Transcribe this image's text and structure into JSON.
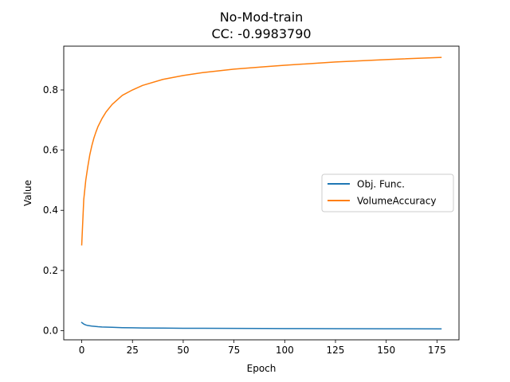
{
  "chart_data": {
    "type": "line",
    "title": "No-Mod-train",
    "subtitle": "CC: -0.9983790",
    "xlabel": "Epoch",
    "ylabel": "Value",
    "xlim": [
      -8.85,
      185.85
    ],
    "ylim": [
      -0.0305,
      0.9455
    ],
    "xticks": [
      0,
      25,
      50,
      75,
      100,
      125,
      150,
      175
    ],
    "yticks": [
      0.0,
      0.2,
      0.4,
      0.6,
      0.8
    ],
    "ytick_labels": [
      "0.0",
      "0.2",
      "0.4",
      "0.6",
      "0.8"
    ],
    "grid": false,
    "legend_placement": "center-right",
    "series": [
      {
        "name": "Obj. Func.",
        "color": "#1f77b4",
        "x": [
          0,
          1,
          2,
          3,
          5,
          8,
          10,
          15,
          20,
          25,
          30,
          40,
          50,
          60,
          75,
          90,
          100,
          125,
          150,
          177
        ],
        "y": [
          0.027,
          0.022,
          0.019,
          0.017,
          0.015,
          0.013,
          0.012,
          0.011,
          0.01,
          0.0095,
          0.009,
          0.0085,
          0.008,
          0.0078,
          0.0075,
          0.0072,
          0.007,
          0.0066,
          0.0063,
          0.006
        ]
      },
      {
        "name": "VolumeAccuracy",
        "color": "#ff7f0e",
        "x": [
          0,
          1,
          2,
          3,
          4,
          5,
          6,
          7,
          8,
          10,
          12,
          15,
          20,
          25,
          30,
          40,
          50,
          60,
          75,
          90,
          100,
          125,
          150,
          177
        ],
        "y": [
          0.285,
          0.435,
          0.5,
          0.545,
          0.585,
          0.615,
          0.64,
          0.66,
          0.678,
          0.705,
          0.727,
          0.752,
          0.782,
          0.8,
          0.815,
          0.835,
          0.848,
          0.858,
          0.869,
          0.877,
          0.882,
          0.893,
          0.901,
          0.908
        ]
      }
    ]
  }
}
